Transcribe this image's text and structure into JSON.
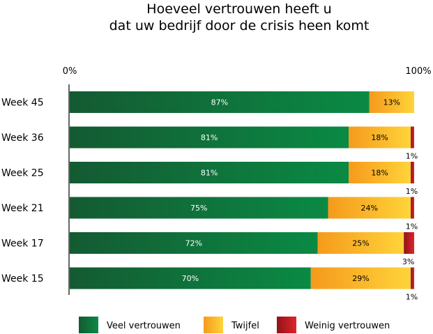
{
  "chart_data": {
    "type": "bar",
    "orientation": "horizontal",
    "stacked": true,
    "title": [
      "Hoeveel vertrouwen heeft u",
      "dat uw bedrijf door de crisis heen komt"
    ],
    "xlim": [
      0,
      100
    ],
    "tick_labels": [
      "0%",
      "100%"
    ],
    "categories": [
      "Week 45",
      "Week 36",
      "Week 25",
      "Week 21",
      "Week 17",
      "Week 15"
    ],
    "series": [
      {
        "name": "Veel vertrouwen",
        "values": [
          87,
          81,
          81,
          75,
          72,
          70
        ],
        "labels": [
          "87%",
          "81%",
          "81%",
          "75%",
          "72%",
          "70%"
        ],
        "color_dark": "#145a32",
        "color_light": "#0a8a44"
      },
      {
        "name": "Twijfel",
        "values": [
          13,
          18,
          18,
          24,
          25,
          29
        ],
        "labels": [
          "13%",
          "18%",
          "18%",
          "24%",
          "25%",
          "29%"
        ],
        "color_dark": "#f59a1c",
        "color_light": "#ffd43a"
      },
      {
        "name": "Weinig vertrouwen",
        "values": [
          0,
          1,
          1,
          1,
          3,
          1
        ],
        "labels": [
          "",
          "1%",
          "1%",
          "1%",
          "3%",
          "1%"
        ],
        "color_dark": "#8f1418",
        "color_light": "#e0242b"
      }
    ],
    "legend_position": "bottom",
    "grid": false
  }
}
